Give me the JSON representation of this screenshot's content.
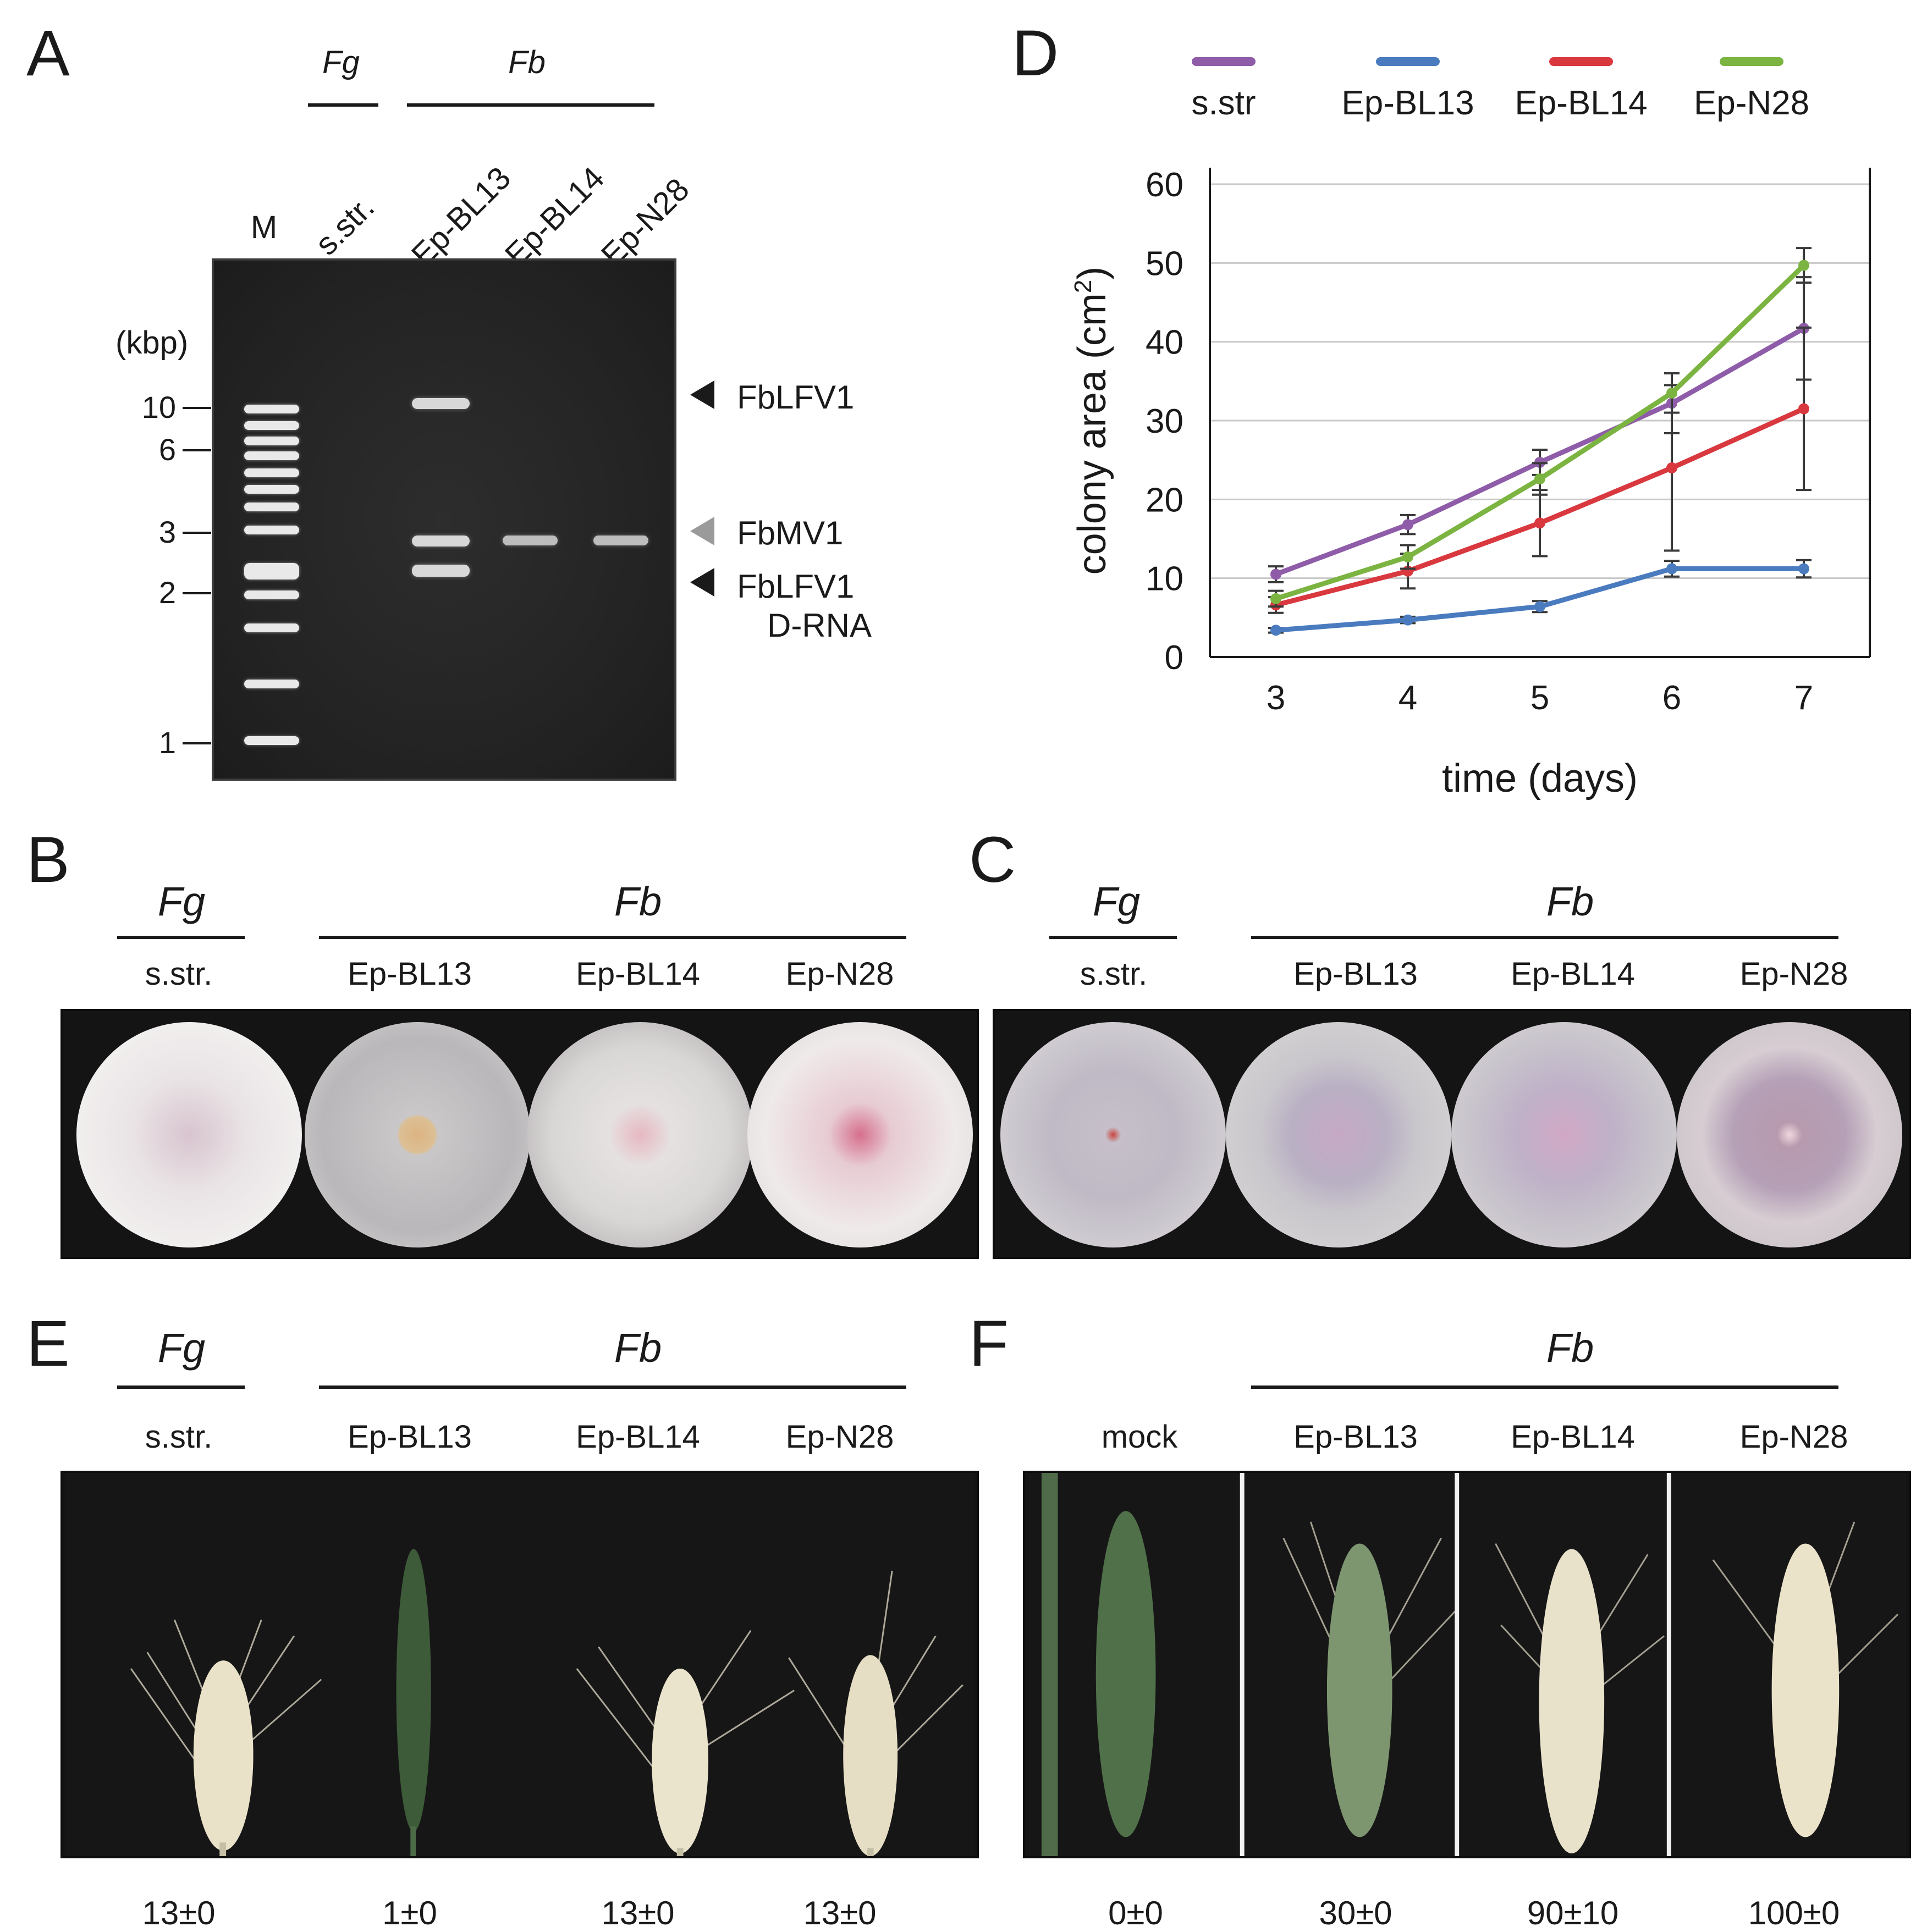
{
  "panels": {
    "A": {
      "letter": "A",
      "group_fg": "Fg",
      "group_fb": "Fb",
      "marker_lane": "M",
      "lanes": [
        "s.str.",
        "Ep-BL13",
        "Ep-BL14",
        "Ep-N28"
      ],
      "unit": "(kbp)",
      "sizes": [
        "10",
        "6",
        "3",
        "2",
        "1"
      ],
      "band_labels": {
        "lfv": "FbLFV1",
        "mv": "FbMV1",
        "drna_line1": "FbLFV1",
        "drna_line2": "D-RNA"
      },
      "arrow_colors": {
        "lfv": "#1a1a1a",
        "mv": "#9a9a9a",
        "drna": "#1a1a1a"
      }
    },
    "B": {
      "letter": "B",
      "group_fg": "Fg",
      "group_fb": "Fb",
      "strains": [
        "s.str.",
        "Ep-BL13",
        "Ep-BL14",
        "Ep-N28"
      ]
    },
    "C": {
      "letter": "C",
      "group_fg": "Fg",
      "group_fb": "Fb",
      "strains": [
        "s.str.",
        "Ep-BL13",
        "Ep-BL14",
        "Ep-N28"
      ]
    },
    "D": {
      "letter": "D"
    },
    "E": {
      "letter": "E",
      "group_fg": "Fg",
      "group_fb": "Fb",
      "strains": [
        "s.str.",
        "Ep-BL13",
        "Ep-BL14",
        "Ep-N28"
      ],
      "scores": [
        "13±0",
        "1±0",
        "13±0",
        "13±0"
      ]
    },
    "F": {
      "letter": "F",
      "group_fb": "Fb",
      "strains": [
        "mock",
        "Ep-BL13",
        "Ep-BL14",
        "Ep-N28"
      ],
      "scores": [
        "0±0",
        "30±0",
        "90±10",
        "100±0"
      ]
    }
  },
  "chart_data": {
    "type": "line",
    "title": "",
    "xlabel": "time (days)",
    "ylabel": "colony area (cm²)",
    "ylabel_main": "colony area (cm",
    "ylabel_sup": "2",
    "ylabel_close": ")",
    "x": [
      3,
      4,
      5,
      6,
      7
    ],
    "ylim": [
      0,
      60
    ],
    "yticks": [
      0,
      10,
      20,
      30,
      40,
      50,
      60
    ],
    "grid": true,
    "legend": "top",
    "series": [
      {
        "name": "s.str",
        "color": "#8e5ca8",
        "values": [
          10.5,
          16.8,
          24.7,
          32.2,
          41.7
        ],
        "err": [
          1.0,
          1.2,
          1.6,
          3.8,
          6.5
        ]
      },
      {
        "name": "Ep-BL13",
        "color": "#4a7bbf",
        "values": [
          3.4,
          4.7,
          6.4,
          11.2,
          11.2
        ],
        "err": [
          0.3,
          0.4,
          0.7,
          1.0,
          1.1
        ]
      },
      {
        "name": "Ep-BL14",
        "color": "#d9383f",
        "values": [
          6.6,
          10.9,
          17.0,
          24.0,
          31.5
        ],
        "err": [
          1.0,
          2.2,
          4.2,
          10.5,
          10.3
        ]
      },
      {
        "name": "Ep-N28",
        "color": "#7cb442",
        "values": [
          7.4,
          12.7,
          22.6,
          33.5,
          49.7
        ],
        "err": [
          1.0,
          1.5,
          2.0,
          2.5,
          2.2
        ]
      }
    ]
  }
}
